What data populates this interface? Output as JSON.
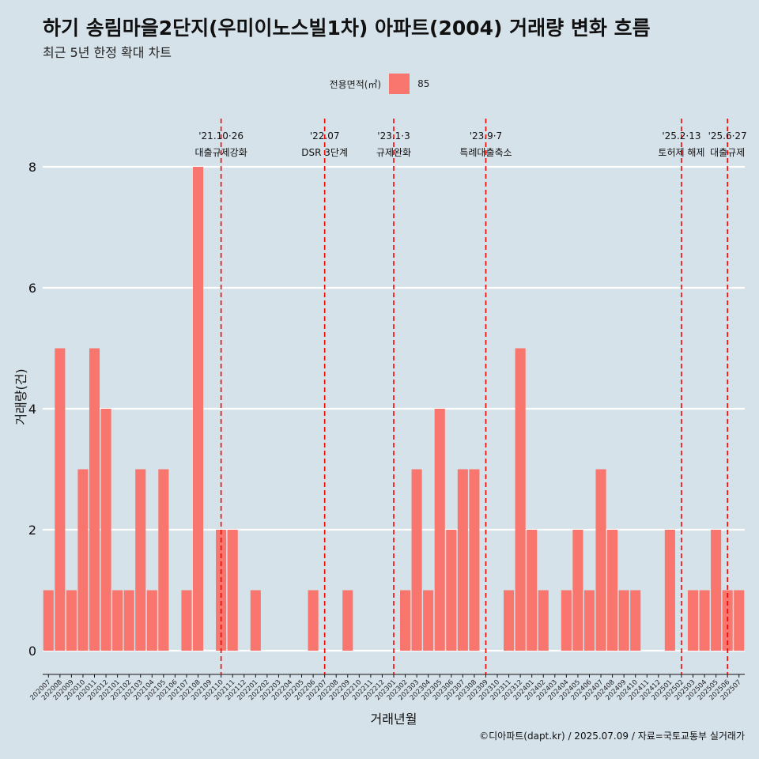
{
  "header": {
    "title": "하기 송림마을2단지(우미이노스빌1차) 아파트(2004) 거래량 변화 흐름",
    "subtitle": "최근 5년 한정 확대 차트"
  },
  "legend": {
    "title": "전용면적(㎡)",
    "item": "85"
  },
  "caption": "©디아파트(dapt.kr) / 2025.07.09 / 자료=국토교통부 실거래가",
  "colors": {
    "bar": "#f8766d",
    "event_line": "#ff0000",
    "grid": "#ffffff",
    "background": "#d6e2ea"
  },
  "chart_data": {
    "type": "bar",
    "xlabel": "거래년월",
    "ylabel": "거래량(건)",
    "ylim": [
      0,
      8
    ],
    "yticks": [
      0,
      2,
      4,
      6,
      8
    ],
    "grid": true,
    "legend_position": "top",
    "categories": [
      "202007",
      "202008",
      "202009",
      "202010",
      "202011",
      "202012",
      "202101",
      "202102",
      "202103",
      "202104",
      "202105",
      "202106",
      "202107",
      "202108",
      "202109",
      "202110",
      "202111",
      "202112",
      "202201",
      "202202",
      "202203",
      "202204",
      "202205",
      "202206",
      "202207",
      "202208",
      "202209",
      "202210",
      "202211",
      "202212",
      "202301",
      "202302",
      "202303",
      "202304",
      "202305",
      "202306",
      "202307",
      "202308",
      "202309",
      "202310",
      "202311",
      "202312",
      "202401",
      "202402",
      "202403",
      "202404",
      "202405",
      "202406",
      "202407",
      "202408",
      "202409",
      "202410",
      "202411",
      "202412",
      "202501",
      "202502",
      "202503",
      "202504",
      "202505",
      "202506",
      "202507"
    ],
    "series": [
      {
        "name": "85",
        "values": [
          1,
          5,
          1,
          3,
          5,
          4,
          1,
          1,
          3,
          1,
          3,
          0,
          1,
          8,
          0,
          2,
          2,
          0,
          1,
          0,
          0,
          0,
          0,
          1,
          0,
          0,
          1,
          0,
          0,
          0,
          0,
          1,
          3,
          1,
          4,
          2,
          3,
          3,
          0,
          0,
          1,
          5,
          2,
          1,
          0,
          1,
          2,
          1,
          3,
          2,
          1,
          1,
          0,
          0,
          2,
          0,
          1,
          1,
          2,
          1,
          1
        ]
      }
    ],
    "annotations": [
      {
        "x": "202110",
        "date": "'21.10·26",
        "label": "대출규제강화"
      },
      {
        "x": "202207",
        "date": "'22.07",
        "label": "DSR 3단계"
      },
      {
        "x": "202301",
        "date": "'23.1·3",
        "label": "규제완화"
      },
      {
        "x": "202309",
        "date": "'23.9·7",
        "label": "특례대출축소"
      },
      {
        "x": "202502",
        "date": "'25.2·13",
        "label": "토허제 해제"
      },
      {
        "x": "202506",
        "date": "'25.6·27",
        "label": "대출규제"
      }
    ]
  }
}
